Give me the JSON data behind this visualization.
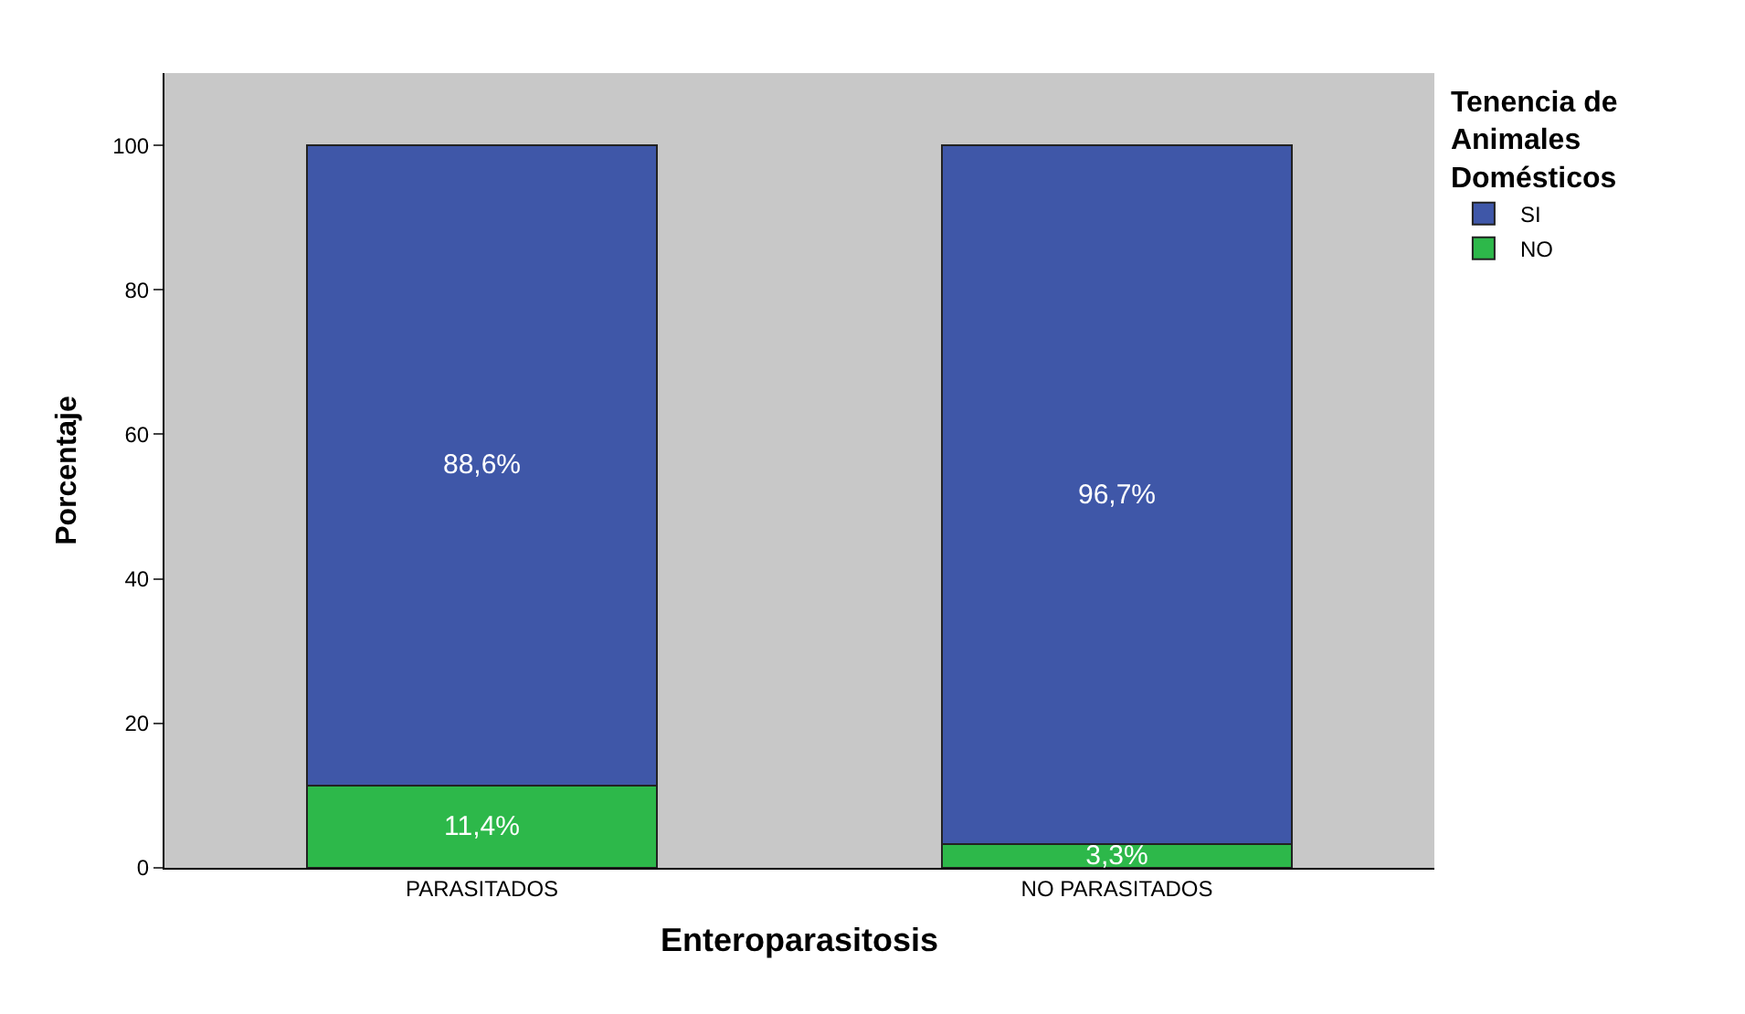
{
  "chart_data": {
    "type": "bar",
    "stacked": true,
    "xlabel": "Enteroparasitosis",
    "ylabel": "Porcentaje",
    "legend_title": "Tenencia de Animales Domésticos",
    "categories": [
      "PARASITADOS",
      "NO PARASITADOS"
    ],
    "series": [
      {
        "name": "NO",
        "color": "#2db84a",
        "values": [
          11.4,
          3.3
        ],
        "value_labels": [
          "11,4%",
          "3,3%"
        ]
      },
      {
        "name": "SI",
        "color": "#3f57a8",
        "values": [
          88.6,
          96.7
        ],
        "value_labels": [
          "88,6%",
          "96,7%"
        ]
      }
    ],
    "ylim": [
      0,
      110
    ],
    "yticks": [
      0,
      20,
      40,
      60,
      80,
      100
    ],
    "grid": false,
    "legend": "top right"
  }
}
